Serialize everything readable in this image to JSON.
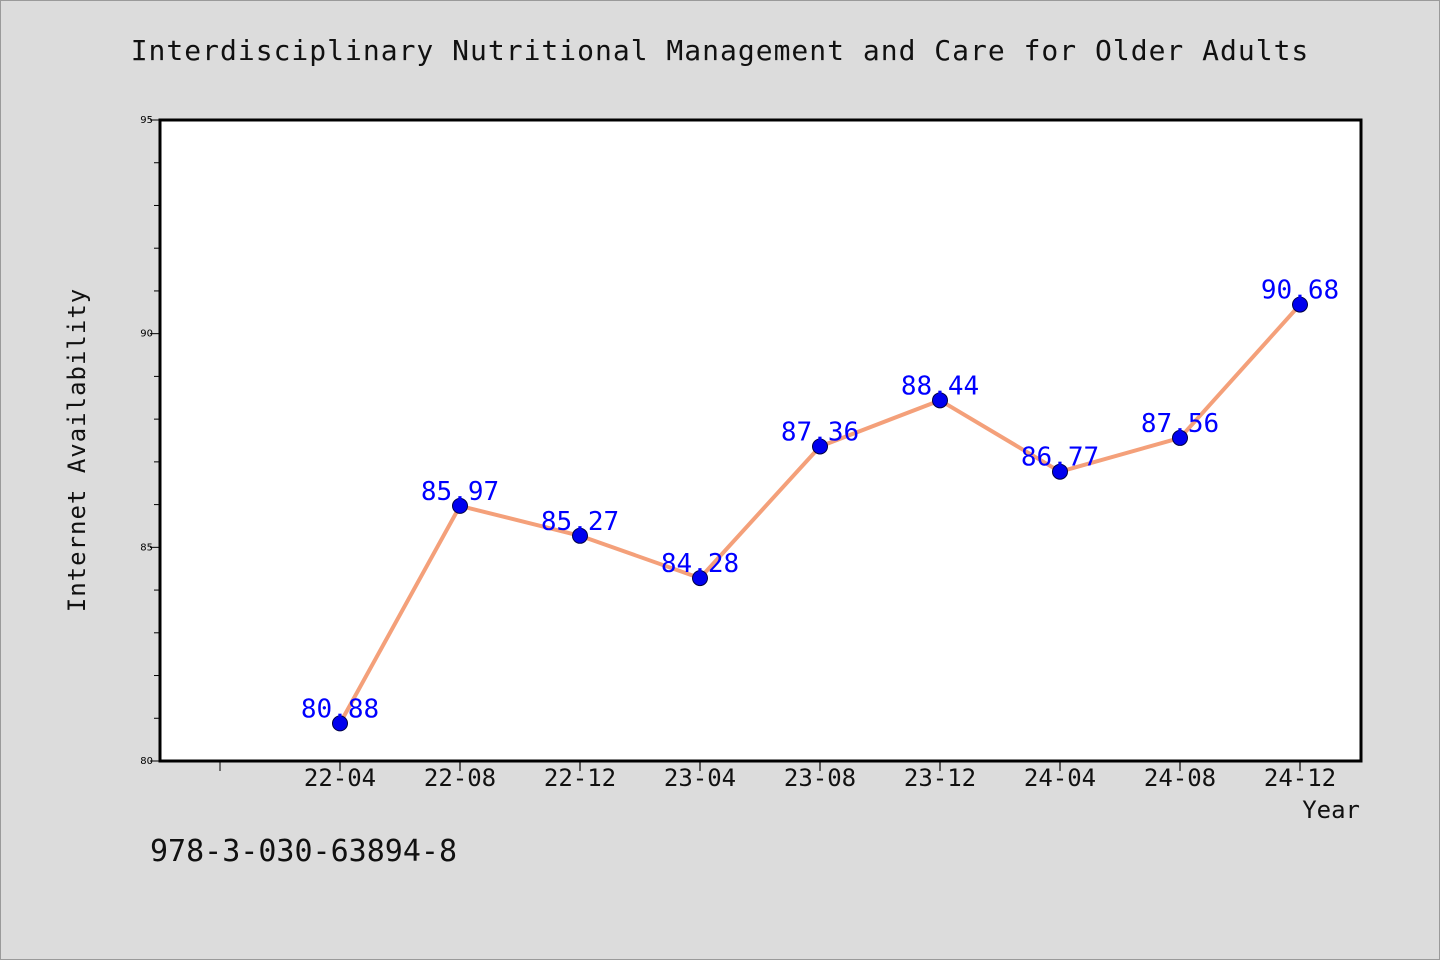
{
  "chart_data": {
    "type": "line",
    "title": "Interdisciplinary Nutritional Management and Care for Older Adults",
    "xlabel": "Year",
    "ylabel": "Internet Availability",
    "categories": [
      "22-04",
      "22-08",
      "22-12",
      "23-04",
      "23-08",
      "23-12",
      "24-04",
      "24-08",
      "24-12"
    ],
    "series": [
      {
        "values": [
          80.88,
          85.97,
          85.27,
          84.28,
          87.36,
          88.44,
          86.77,
          87.56,
          90.68
        ],
        "labels": [
          "80.88",
          "85.97",
          "85.27",
          "84.28",
          "87.36",
          "88.44",
          "86.77",
          "87.56",
          "90.68"
        ]
      }
    ],
    "ylim": [
      80,
      95
    ],
    "yticks": [
      80,
      85,
      90,
      95
    ],
    "ytick_labels": [
      "80",
      "85",
      "90",
      "95"
    ],
    "grid": false,
    "line_color": "#f4a07a",
    "marker_color": "#0000ee",
    "label_color": "#0000ff",
    "background_color": "#dcdcdc",
    "plot_background_color": "#ffffff"
  },
  "footer": {
    "isbn": "978-3-030-63894-8"
  }
}
